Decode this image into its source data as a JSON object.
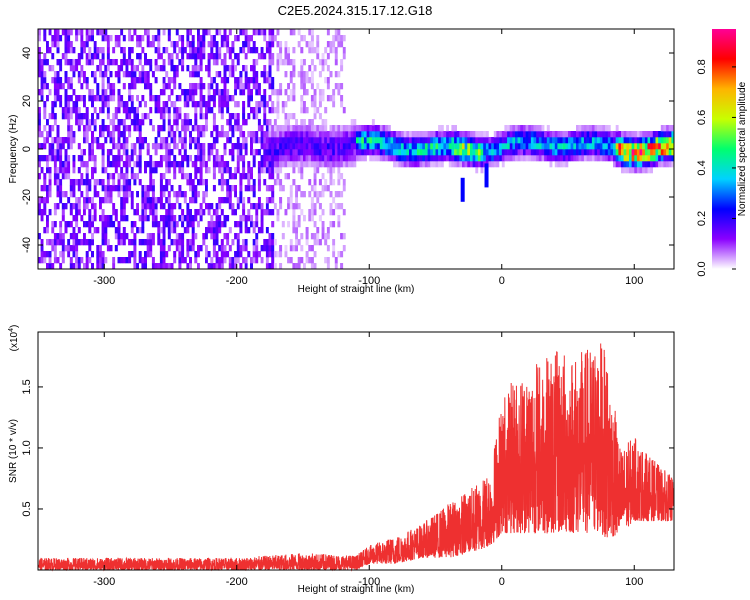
{
  "title": "C2E5.2024.315.17.12.G18",
  "chart_data": [
    {
      "type": "heatmap",
      "xlabel": "Height of straight line (km)",
      "ylabel": "Frequency (Hz)",
      "xlim": [
        -350,
        130
      ],
      "ylim": [
        -50,
        50
      ],
      "xticks": [
        -300,
        -200,
        -100,
        0,
        100
      ],
      "xtick_labels": [
        "-300",
        "-200",
        "-100",
        "0",
        "100"
      ],
      "yticks": [
        -40,
        -20,
        0,
        20,
        40
      ],
      "ytick_labels": [
        "-40",
        "-20",
        "0",
        "20",
        "40"
      ],
      "colorbar": {
        "label": "Normalized spectral amplitude",
        "range": [
          0,
          0.95
        ],
        "ticks": [
          0.0,
          0.2,
          0.4,
          0.6,
          0.8
        ],
        "tick_labels": [
          "0.0",
          "0.2",
          "0.4",
          "0.6",
          "0.8"
        ],
        "colormap": [
          "#ffffff",
          "#8a00ff",
          "#0000ff",
          "#00d2ff",
          "#00ff6e",
          "#c8ff00",
          "#ffb400",
          "#ff0000",
          "#ff0096"
        ]
      },
      "regions": [
        {
          "x_range": [
            -350,
            -173
          ],
          "description_value": "broadband noise across all frequencies",
          "level": 0.1
        },
        {
          "x_range": [
            -173,
            -118
          ],
          "description_value": "faint broadband noise",
          "level": 0.05
        },
        {
          "x_range": [
            -180,
            130
          ],
          "ridge_center_hz": 1,
          "ridge_halfwidth_hz": 6,
          "peak_level": 0.95
        }
      ]
    },
    {
      "type": "line",
      "xlabel": "Height of straight line (km)",
      "ylabel": "SNR (10 * v/v)",
      "y_multiplier_label": "(x10",
      "y_multiplier_exp": "4",
      "xlim": [
        -350,
        130
      ],
      "ylim": [
        0,
        1.95
      ],
      "xticks": [
        -300,
        -200,
        -100,
        0,
        100
      ],
      "xtick_labels": [
        "-300",
        "-200",
        "-100",
        "0",
        "100"
      ],
      "yticks": [
        0.5,
        1.0,
        1.5
      ],
      "ytick_labels": [
        "0.5",
        "1.0",
        "1.5"
      ],
      "color": "#ee3030",
      "envelope": {
        "x": [
          -350,
          -300,
          -200,
          -150,
          -110,
          -100,
          -80,
          -60,
          -40,
          -20,
          -8,
          0,
          20,
          40,
          60,
          75,
          80,
          90,
          100,
          110,
          130
        ],
        "y_max": [
          0.1,
          0.1,
          0.1,
          0.14,
          0.12,
          0.2,
          0.28,
          0.38,
          0.55,
          0.7,
          0.85,
          1.45,
          1.7,
          1.8,
          1.8,
          1.9,
          1.7,
          1.0,
          1.1,
          0.95,
          0.75
        ],
        "y_min": [
          0.0,
          0.0,
          0.0,
          0.0,
          0.0,
          0.05,
          0.05,
          0.1,
          0.1,
          0.15,
          0.2,
          0.3,
          0.3,
          0.3,
          0.3,
          0.3,
          0.25,
          0.3,
          0.4,
          0.4,
          0.4
        ]
      }
    }
  ]
}
